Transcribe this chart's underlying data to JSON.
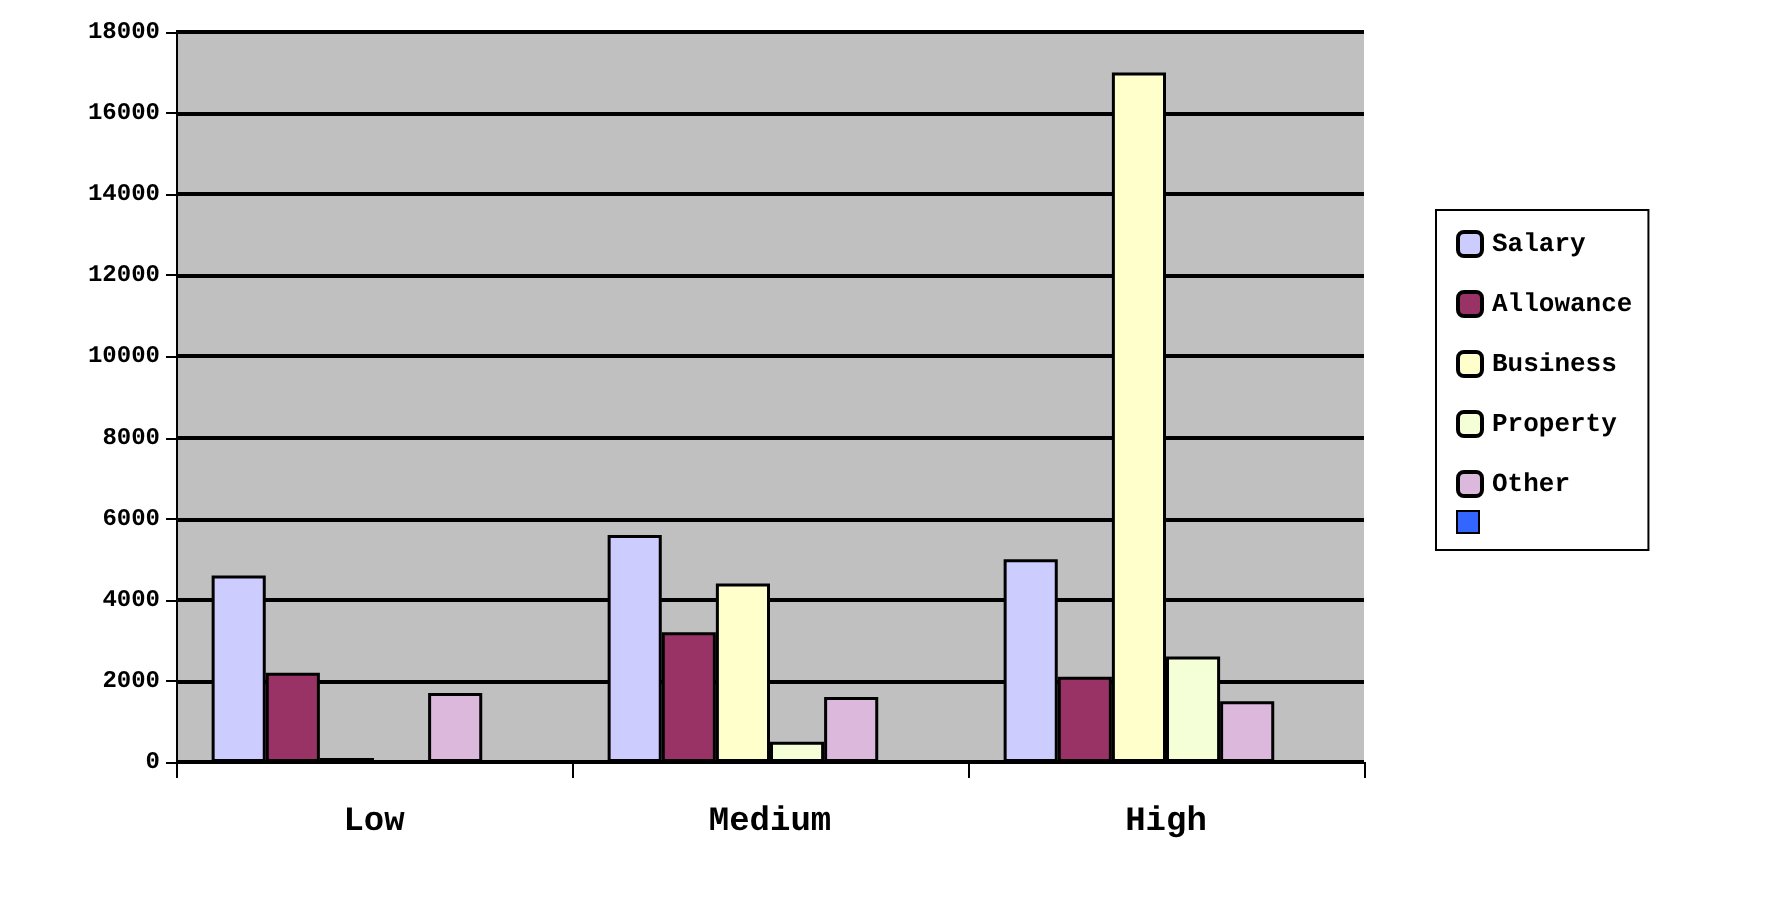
{
  "chart_data": {
    "type": "bar",
    "categories": [
      "Low",
      "Medium",
      "High"
    ],
    "series": [
      {
        "name": "Salary",
        "color": "#ccccff",
        "values": [
          4600,
          5600,
          5000
        ]
      },
      {
        "name": "Allowance",
        "color": "#993366",
        "values": [
          2200,
          3200,
          2100
        ]
      },
      {
        "name": "Business",
        "color": "#ffffcc",
        "values": [
          100,
          4400,
          17000
        ]
      },
      {
        "name": "Property",
        "color": "#f4ffd8",
        "values": [
          null,
          500,
          2600
        ]
      },
      {
        "name": "Other",
        "color": "#dcb8dc",
        "values": [
          1700,
          1600,
          1500
        ]
      },
      {
        "color": "#3366ff",
        "values": [
          null,
          null,
          null
        ]
      }
    ],
    "ylim": [
      0,
      18000
    ],
    "yticks": [
      0,
      2000,
      4000,
      6000,
      8000,
      10000,
      12000,
      14000,
      16000,
      18000
    ],
    "grid": "y",
    "legend": "right"
  }
}
